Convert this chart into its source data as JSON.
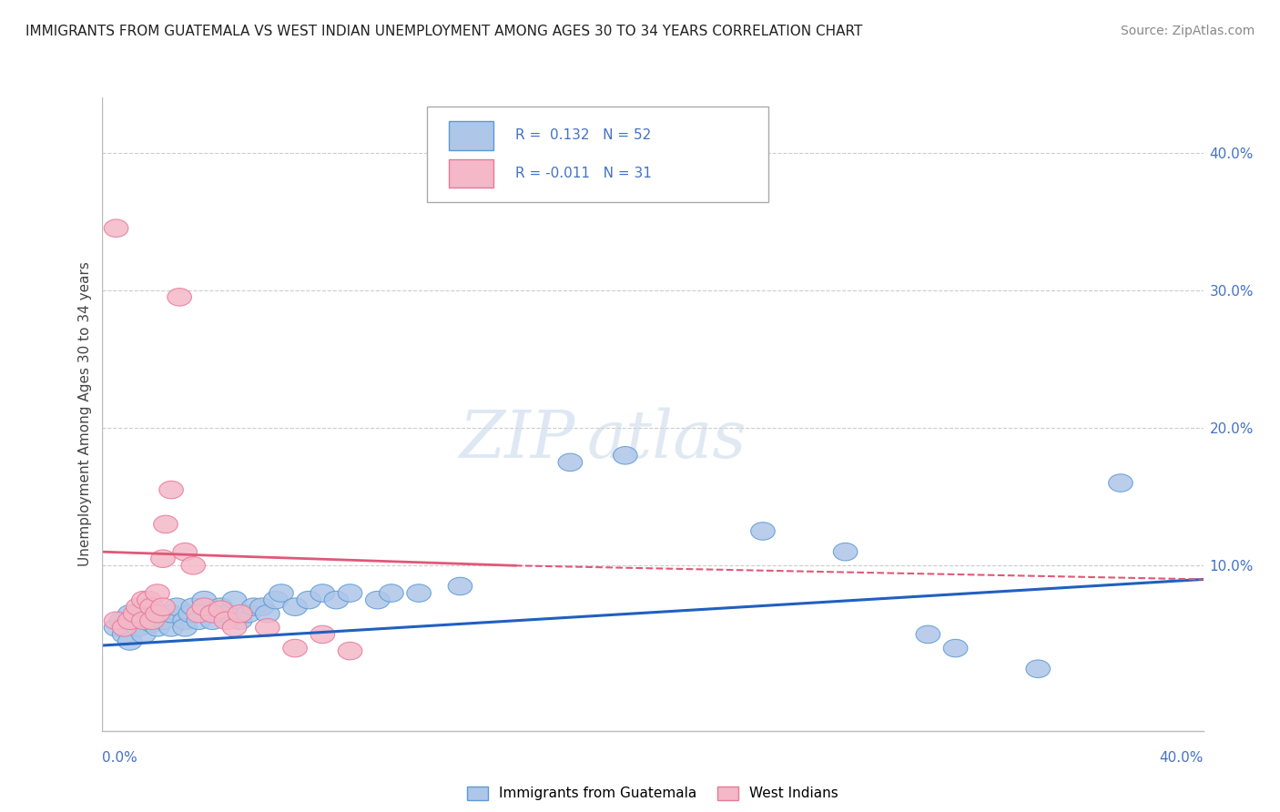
{
  "title": "IMMIGRANTS FROM GUATEMALA VS WEST INDIAN UNEMPLOYMENT AMONG AGES 30 TO 34 YEARS CORRELATION CHART",
  "source": "Source: ZipAtlas.com",
  "ylabel": "Unemployment Among Ages 30 to 34 years",
  "xlim": [
    0.0,
    0.4
  ],
  "ylim": [
    -0.02,
    0.44
  ],
  "r_guatemala": 0.132,
  "n_guatemala": 52,
  "r_westindian": -0.011,
  "n_westindian": 31,
  "color_guatemala_fill": "#aec6e8",
  "color_guatemala_edge": "#5b9bd5",
  "color_westindian_fill": "#f4b8c8",
  "color_westindian_edge": "#e87898",
  "color_guatemala_trendline": "#2060c0",
  "color_westindian_trendline": "#e05878",
  "legend_label_guatemala": "Immigrants from Guatemala",
  "legend_label_westindian": "West Indians",
  "scatter_guatemala": [
    [
      0.005,
      0.055
    ],
    [
      0.007,
      0.06
    ],
    [
      0.008,
      0.05
    ],
    [
      0.01,
      0.065
    ],
    [
      0.01,
      0.045
    ],
    [
      0.012,
      0.06
    ],
    [
      0.013,
      0.055
    ],
    [
      0.015,
      0.07
    ],
    [
      0.015,
      0.05
    ],
    [
      0.017,
      0.06
    ],
    [
      0.018,
      0.058
    ],
    [
      0.02,
      0.065
    ],
    [
      0.02,
      0.055
    ],
    [
      0.022,
      0.06
    ],
    [
      0.025,
      0.055
    ],
    [
      0.025,
      0.065
    ],
    [
      0.027,
      0.07
    ],
    [
      0.03,
      0.06
    ],
    [
      0.03,
      0.055
    ],
    [
      0.032,
      0.065
    ],
    [
      0.033,
      0.07
    ],
    [
      0.035,
      0.06
    ],
    [
      0.037,
      0.075
    ],
    [
      0.04,
      0.065
    ],
    [
      0.04,
      0.06
    ],
    [
      0.043,
      0.07
    ],
    [
      0.045,
      0.065
    ],
    [
      0.048,
      0.075
    ],
    [
      0.05,
      0.06
    ],
    [
      0.053,
      0.065
    ],
    [
      0.055,
      0.07
    ],
    [
      0.058,
      0.07
    ],
    [
      0.06,
      0.065
    ],
    [
      0.063,
      0.075
    ],
    [
      0.065,
      0.08
    ],
    [
      0.07,
      0.07
    ],
    [
      0.075,
      0.075
    ],
    [
      0.08,
      0.08
    ],
    [
      0.085,
      0.075
    ],
    [
      0.09,
      0.08
    ],
    [
      0.1,
      0.075
    ],
    [
      0.105,
      0.08
    ],
    [
      0.115,
      0.08
    ],
    [
      0.13,
      0.085
    ],
    [
      0.17,
      0.175
    ],
    [
      0.19,
      0.18
    ],
    [
      0.24,
      0.125
    ],
    [
      0.27,
      0.11
    ],
    [
      0.3,
      0.05
    ],
    [
      0.31,
      0.04
    ],
    [
      0.34,
      0.025
    ],
    [
      0.37,
      0.16
    ]
  ],
  "scatter_westindian": [
    [
      0.005,
      0.06
    ],
    [
      0.008,
      0.055
    ],
    [
      0.01,
      0.06
    ],
    [
      0.012,
      0.065
    ],
    [
      0.013,
      0.07
    ],
    [
      0.015,
      0.075
    ],
    [
      0.015,
      0.06
    ],
    [
      0.017,
      0.075
    ],
    [
      0.018,
      0.07
    ],
    [
      0.018,
      0.06
    ],
    [
      0.02,
      0.08
    ],
    [
      0.02,
      0.065
    ],
    [
      0.022,
      0.07
    ],
    [
      0.022,
      0.105
    ],
    [
      0.023,
      0.13
    ],
    [
      0.025,
      0.155
    ],
    [
      0.028,
      0.295
    ],
    [
      0.03,
      0.11
    ],
    [
      0.033,
      0.1
    ],
    [
      0.035,
      0.065
    ],
    [
      0.037,
      0.07
    ],
    [
      0.04,
      0.065
    ],
    [
      0.043,
      0.068
    ],
    [
      0.045,
      0.06
    ],
    [
      0.048,
      0.055
    ],
    [
      0.05,
      0.065
    ],
    [
      0.06,
      0.055
    ],
    [
      0.07,
      0.04
    ],
    [
      0.08,
      0.05
    ],
    [
      0.09,
      0.038
    ],
    [
      0.005,
      0.345
    ]
  ],
  "g_trend_x0": 0.0,
  "g_trend_y0": 0.042,
  "g_trend_x1": 0.4,
  "g_trend_y1": 0.09,
  "w_trend_solid_x0": 0.0,
  "w_trend_solid_y0": 0.11,
  "w_trend_solid_x1": 0.15,
  "w_trend_solid_y1": 0.1,
  "w_trend_dashed_x0": 0.15,
  "w_trend_dashed_y0": 0.1,
  "w_trend_dashed_x1": 0.4,
  "w_trend_dashed_y1": 0.09,
  "grid_color": "#cccccc",
  "background_color": "#ffffff",
  "watermark_zip": "ZIP",
  "watermark_atlas": "atlas"
}
